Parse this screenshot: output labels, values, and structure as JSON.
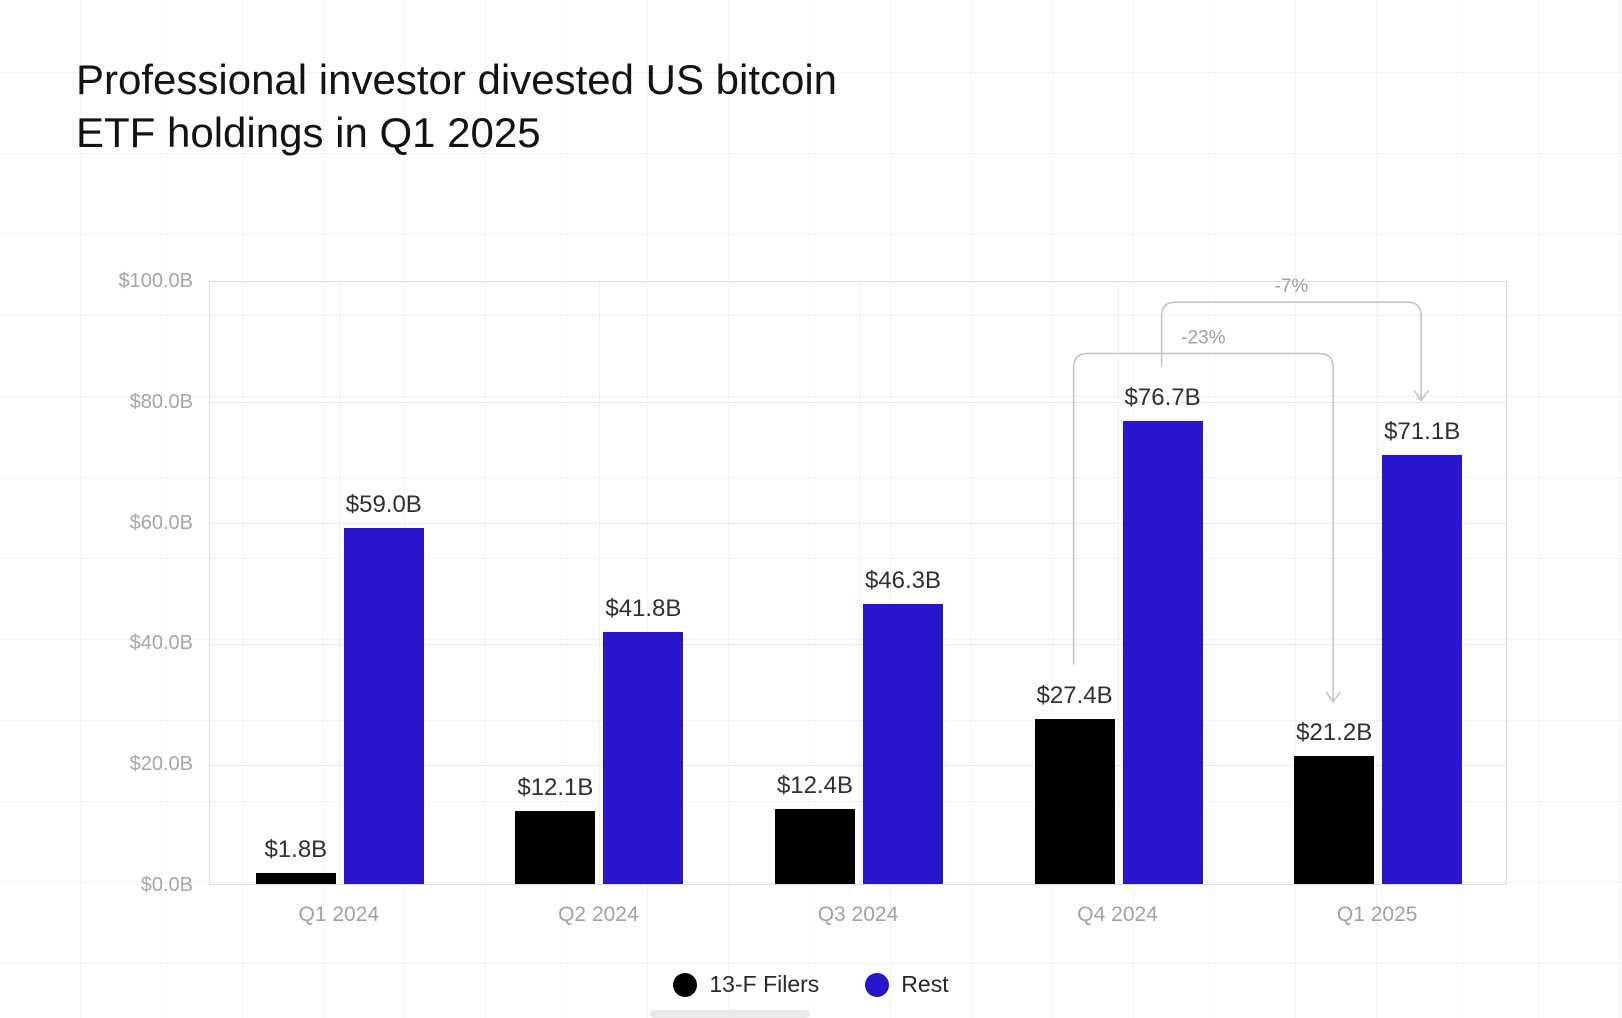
{
  "title": "Professional investor divested US bitcoin\nETF holdings in Q1 2025",
  "chart_data": {
    "type": "bar",
    "title": "Professional investor divested US bitcoin ETF holdings in Q1 2025",
    "categories": [
      "Q1 2024",
      "Q2 2024",
      "Q3 2024",
      "Q4 2024",
      "Q1 2025"
    ],
    "series": [
      {
        "name": "13-F Filers",
        "color": "#000000",
        "values": [
          1.8,
          12.1,
          12.4,
          27.4,
          21.2
        ],
        "labels": [
          "$1.8B",
          "$12.1B",
          "$12.4B",
          "$27.4B",
          "$21.2B"
        ]
      },
      {
        "name": "Rest",
        "color": "#2815ce",
        "values": [
          59.0,
          41.8,
          46.3,
          76.7,
          71.1
        ],
        "labels": [
          "$59.0B",
          "$41.8B",
          "$46.3B",
          "$76.7B",
          "$71.1B"
        ]
      }
    ],
    "xlabel": "",
    "ylabel": "",
    "ylim": [
      0,
      100
    ],
    "yticks": [
      {
        "value": 0,
        "label": "$0.0B"
      },
      {
        "value": 20,
        "label": "$20.0B"
      },
      {
        "value": 40,
        "label": "$40.0B"
      },
      {
        "value": 60,
        "label": "$60.0B"
      },
      {
        "value": 80,
        "label": "$80.0B"
      },
      {
        "value": 100,
        "label": "$100.0B"
      }
    ],
    "grid": true,
    "legend_position": "bottom",
    "annotations": [
      {
        "label": "-23%",
        "series": 0,
        "from_category": "Q4 2024",
        "to_category": "Q1 2025",
        "line_level": 88
      },
      {
        "label": "-7%",
        "series": 1,
        "from_category": "Q4 2024",
        "to_category": "Q1 2025",
        "line_level": 96.5
      }
    ]
  },
  "colors": {
    "bar_black": "#000000",
    "bar_blue": "#2815ce",
    "axis_text": "#a4a4a4",
    "value_text": "#303030",
    "annotation_line": "#c2c2c2",
    "annotation_text": "#a0a0a0",
    "grid_line": "#e8e8e8"
  }
}
